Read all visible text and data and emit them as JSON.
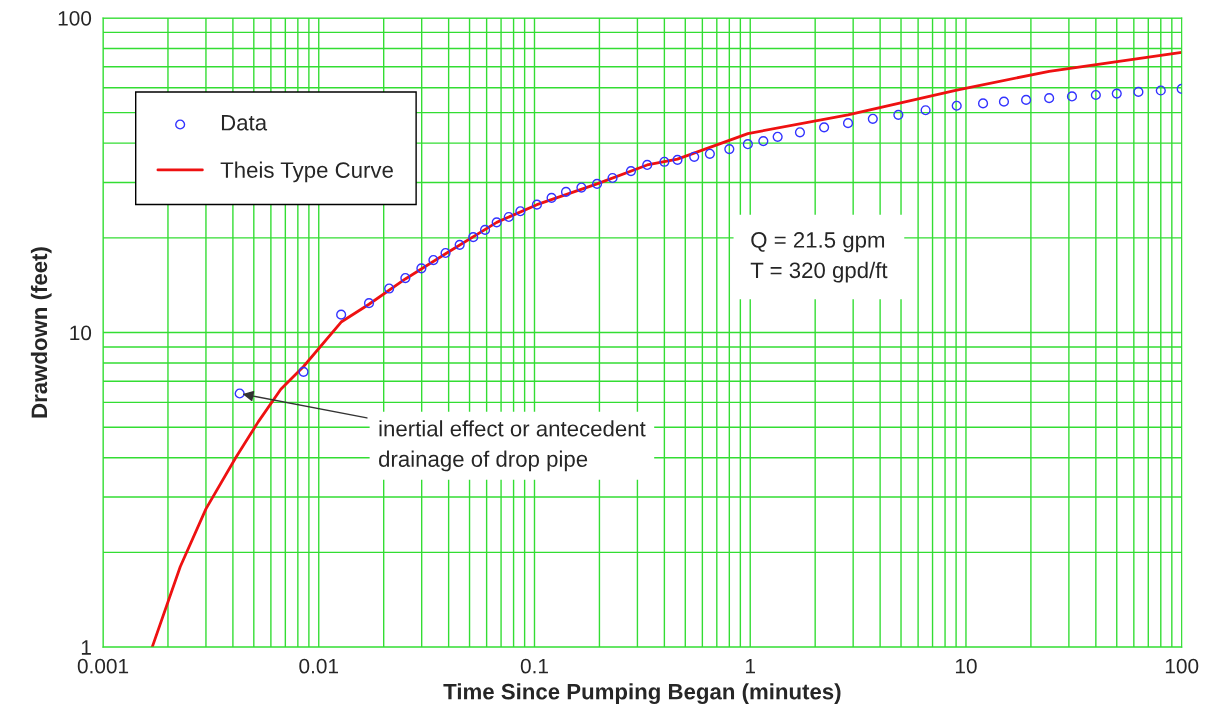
{
  "chart_data": {
    "type": "scatter",
    "xlabel": "Time Since Pumping Began (minutes)",
    "ylabel": "Drawdown (feet)",
    "log": "xy",
    "grid": true,
    "legend": "top left",
    "xlim": [
      0.001,
      100
    ],
    "xticks": [
      0.001,
      0.01,
      0.1,
      1,
      10,
      100
    ],
    "ylim": [
      1,
      100
    ],
    "yticks": [
      1,
      10,
      100
    ],
    "series": [
      {
        "name": "Data",
        "marker": "circle",
        "color": "#3333ff",
        "x": [
          0.0043,
          0.0085,
          0.0127,
          0.0171,
          0.0212,
          0.0252,
          0.0299,
          0.034,
          0.0387,
          0.045,
          0.052,
          0.059,
          0.0668,
          0.076,
          0.086,
          0.1026,
          0.12,
          0.14,
          0.165,
          0.195,
          0.23,
          0.28,
          0.333,
          0.4,
          0.46,
          0.55,
          0.65,
          0.8,
          0.975,
          1.15,
          1.34,
          1.7,
          2.2,
          2.84,
          3.7,
          4.86,
          6.5,
          9.06,
          12,
          15,
          19,
          24.3,
          31,
          40,
          50,
          63,
          80,
          100
        ],
        "values": [
          6.4,
          7.5,
          11.4,
          12.4,
          13.8,
          14.9,
          16.0,
          17.0,
          17.9,
          19.0,
          20.1,
          21.2,
          22.4,
          23.3,
          24.3,
          25.5,
          26.8,
          28.0,
          28.9,
          29.7,
          31.0,
          32.6,
          34.1,
          34.9,
          35.4,
          36.2,
          37.0,
          38.3,
          39.7,
          40.6,
          41.9,
          43.3,
          44.9,
          46.3,
          47.8,
          49.2,
          50.9,
          52.6,
          53.5,
          54.2,
          54.9,
          55.6,
          56.3,
          56.9,
          57.5,
          58.2,
          58.8,
          59.5
        ]
      },
      {
        "name": "Theis Type Curve",
        "type": "line",
        "marker": "none",
        "color": "#ee1111",
        "x": [
          0.00169,
          0.00228,
          0.003,
          0.00412,
          0.00524,
          0.00667,
          0.0085,
          0.0127,
          0.0171,
          0.0252,
          0.0387,
          0.0668,
          0.1026,
          0.195,
          0.333,
          0.46,
          0.975,
          2.84,
          9.06,
          24.3,
          100
        ],
        "values": [
          1.0,
          1.8,
          2.75,
          4.0,
          5.2,
          6.6,
          7.8,
          10.8,
          12.3,
          14.8,
          17.8,
          22.4,
          25.5,
          29.7,
          34.1,
          35.6,
          42.9,
          49.2,
          59.0,
          67.7,
          77.7
        ]
      }
    ],
    "annotations": [
      {
        "text": "inertial effect or antecedent\ndrainage of drop pipe",
        "x": 0.0043,
        "y": 6.4
      },
      "Q = 21.5 gpm\nT = 320 gpd/ft"
    ]
  }
}
